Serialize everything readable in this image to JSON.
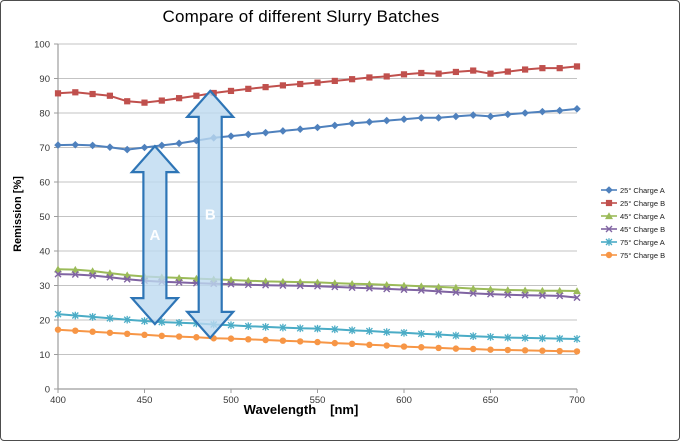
{
  "chart_data": {
    "type": "line",
    "title": "Compare of different Slurry Batches",
    "xlabel": "Wavelength",
    "xlabel_unit": "[nm]",
    "ylabel": "Remission [%]",
    "xlim": [
      400,
      700
    ],
    "ylim": [
      0,
      100
    ],
    "x_ticks": [
      400,
      450,
      500,
      550,
      600,
      650,
      700
    ],
    "y_ticks": [
      0,
      10,
      20,
      30,
      40,
      50,
      60,
      70,
      80,
      90,
      100
    ],
    "grid": "horizontal",
    "legend_position": "right",
    "x": [
      400,
      410,
      420,
      430,
      440,
      450,
      460,
      470,
      480,
      490,
      500,
      510,
      520,
      530,
      540,
      550,
      560,
      570,
      580,
      590,
      600,
      610,
      620,
      630,
      640,
      650,
      660,
      670,
      680,
      690,
      700
    ],
    "series": [
      {
        "name": "25° Charge A",
        "color": "#4F81BD",
        "marker": "diamond",
        "values": [
          70.7,
          70.8,
          70.6,
          70.1,
          69.4,
          70.0,
          70.6,
          71.2,
          72.0,
          72.8,
          73.3,
          73.8,
          74.3,
          74.8,
          75.3,
          75.8,
          76.4,
          77.0,
          77.4,
          77.8,
          78.2,
          78.6,
          78.6,
          79.0,
          79.4,
          79.0,
          79.6,
          80.0,
          80.4,
          80.7,
          81.2
        ]
      },
      {
        "name": "25° Charge B",
        "color": "#C0504D",
        "marker": "square",
        "values": [
          85.7,
          86.0,
          85.5,
          85.0,
          83.4,
          83.0,
          83.6,
          84.3,
          85.0,
          85.8,
          86.4,
          87.0,
          87.5,
          88.0,
          88.4,
          88.8,
          89.3,
          89.8,
          90.3,
          90.6,
          91.2,
          91.6,
          91.4,
          91.9,
          92.3,
          91.4,
          92.0,
          92.6,
          93.0,
          93.0,
          93.5
        ]
      },
      {
        "name": "45° Charge A",
        "color": "#9BBB59",
        "marker": "triangle",
        "values": [
          34.7,
          34.6,
          34.2,
          33.6,
          33.0,
          32.6,
          32.4,
          32.2,
          32.0,
          31.8,
          31.6,
          31.4,
          31.2,
          31.1,
          31.0,
          30.9,
          30.7,
          30.5,
          30.4,
          30.2,
          30.0,
          29.8,
          29.6,
          29.4,
          29.1,
          28.9,
          28.7,
          28.6,
          28.5,
          28.5,
          28.4
        ]
      },
      {
        "name": "45° Charge B",
        "color": "#8064A2",
        "marker": "x",
        "values": [
          33.3,
          33.2,
          32.9,
          32.4,
          31.8,
          31.4,
          31.1,
          30.9,
          30.7,
          30.5,
          30.4,
          30.2,
          30.1,
          30.0,
          29.9,
          29.8,
          29.6,
          29.4,
          29.2,
          29.0,
          28.8,
          28.6,
          28.3,
          28.0,
          27.7,
          27.5,
          27.3,
          27.2,
          27.1,
          27.0,
          26.5
        ]
      },
      {
        "name": "75° Charge A",
        "color": "#4BACC6",
        "marker": "asterisk",
        "values": [
          21.7,
          21.3,
          20.9,
          20.5,
          20.1,
          19.7,
          19.4,
          19.2,
          19.0,
          18.7,
          18.5,
          18.2,
          18.0,
          17.8,
          17.6,
          17.5,
          17.3,
          17.0,
          16.8,
          16.5,
          16.3,
          16.0,
          15.8,
          15.5,
          15.3,
          15.1,
          14.9,
          14.8,
          14.7,
          14.6,
          14.5
        ]
      },
      {
        "name": "75° Charge B",
        "color": "#F79646",
        "marker": "circle",
        "values": [
          17.2,
          16.9,
          16.6,
          16.3,
          16.0,
          15.7,
          15.4,
          15.2,
          15.0,
          14.7,
          14.6,
          14.4,
          14.2,
          14.0,
          13.8,
          13.6,
          13.3,
          13.1,
          12.8,
          12.6,
          12.3,
          12.1,
          11.9,
          11.7,
          11.6,
          11.4,
          11.3,
          11.2,
          11.1,
          11.0,
          10.9
        ]
      }
    ],
    "annotations": [
      {
        "label": "A",
        "x": 456,
        "top": 70.4,
        "bottom": 18.8
      },
      {
        "label": "B",
        "x": 488,
        "top": 86.4,
        "bottom": 14.8
      }
    ],
    "arrow_style": {
      "fill": "#BDD9F0",
      "stroke": "#2E75B6",
      "label_color": "#FDFEFF"
    },
    "colors": {
      "gridline": "#C3C3C3",
      "axis": "#9C9C9C",
      "tick_label": "#363636"
    }
  }
}
